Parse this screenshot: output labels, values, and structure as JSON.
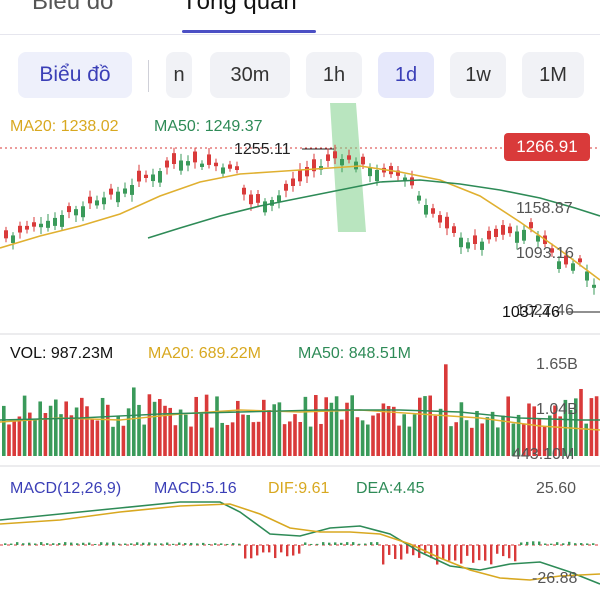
{
  "tabs": [
    "Biểu đồ",
    "Tổng quan"
  ],
  "toolbar": {
    "chart_button": "Biểu đồ",
    "intervals": [
      "n",
      "30m",
      "1h",
      "1d",
      "1w",
      "1M"
    ],
    "selected_interval": "1d"
  },
  "price_panel": {
    "ma20_label": "MA20: 1238.02",
    "ma50_label": "MA50: 1249.37",
    "high_label": "1255.11",
    "low_label": "1037.46",
    "current_price": "1266.91",
    "axis_labels": [
      "1158.87",
      "1093.16",
      "1027.46"
    ]
  },
  "volume_panel": {
    "vol_label": "VOL: 987.23M",
    "ma20_label": "MA20: 689.22M",
    "ma50_label": "MA50: 848.51M",
    "axis_labels": [
      "1.65B",
      "1.04B",
      "443.10M"
    ]
  },
  "macd_panel": {
    "title_label": "MACD(12,26,9)",
    "macd_label": "MACD:5.16",
    "dif_label": "DIF:9.61",
    "dea_label": "DEA:4.45",
    "axis_labels": [
      "25.60",
      "-26.88"
    ]
  },
  "colors": {
    "up": "#d93a3a",
    "down": "#3a9a5a",
    "ma20": "#e0b030",
    "ma50": "#2e8b57",
    "accent": "#3b3fb7",
    "macd_dif": "#2e8b57",
    "macd_dea": "#d8a820"
  }
}
